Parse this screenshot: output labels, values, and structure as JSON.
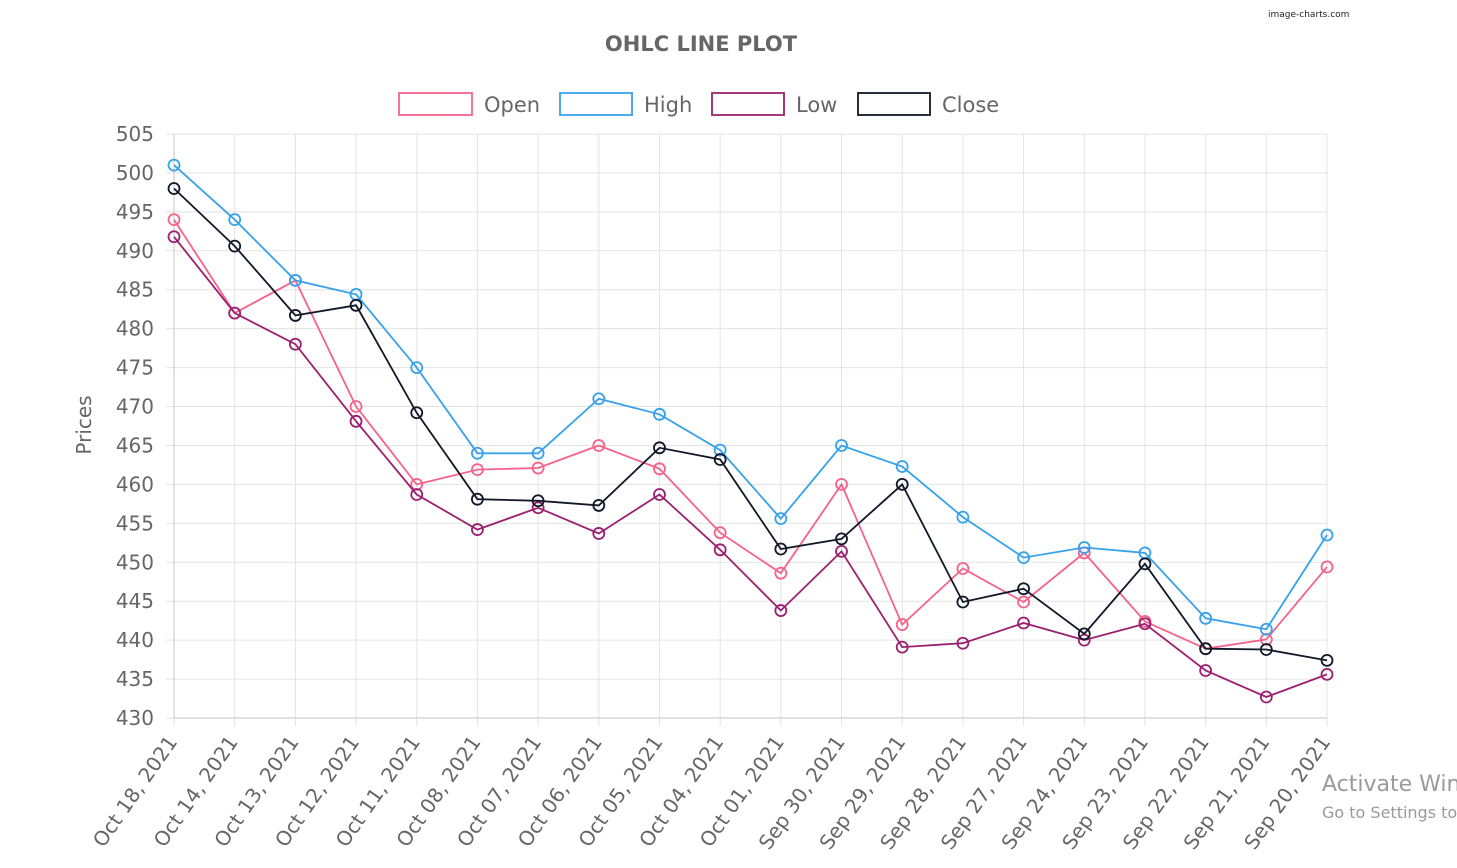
{
  "watermark": "image-charts.com",
  "overlay": {
    "line1": "Activate Win",
    "line2": "Go to Settings to"
  },
  "chart_data": {
    "type": "line",
    "title": "OHLC LINE PLOT",
    "xlabel": "",
    "ylabel": "Prices",
    "ylim": [
      430,
      505
    ],
    "yticks": [
      430,
      435,
      440,
      445,
      450,
      455,
      460,
      465,
      470,
      475,
      480,
      485,
      490,
      495,
      500,
      505
    ],
    "grid": true,
    "legend_position": "top",
    "categories": [
      "Oct 18, 2021",
      "Oct 14, 2021",
      "Oct 13, 2021",
      "Oct 12, 2021",
      "Oct 11, 2021",
      "Oct 08, 2021",
      "Oct 07, 2021",
      "Oct 06, 2021",
      "Oct 05, 2021",
      "Oct 04, 2021",
      "Oct 01, 2021",
      "Sep 30, 2021",
      "Sep 29, 2021",
      "Sep 28, 2021",
      "Sep 27, 2021",
      "Sep 24, 2021",
      "Sep 23, 2021",
      "Sep 22, 2021",
      "Sep 21, 2021",
      "Sep 20, 2021"
    ],
    "series": [
      {
        "name": "Open",
        "color": "#f5638a",
        "values": [
          494.0,
          482.0,
          486.2,
          470.0,
          460.0,
          461.9,
          462.1,
          465.0,
          462.0,
          453.8,
          448.6,
          460.0,
          442.0,
          449.2,
          444.9,
          451.2,
          442.4,
          438.9,
          440.1,
          449.4
        ]
      },
      {
        "name": "High",
        "color": "#36a2eb",
        "values": [
          501.0,
          494.0,
          486.2,
          484.4,
          475.0,
          464.0,
          464.0,
          471.0,
          469.0,
          464.4,
          455.6,
          465.0,
          462.3,
          455.8,
          450.6,
          451.9,
          451.2,
          442.8,
          441.4,
          453.5
        ]
      },
      {
        "name": "Low",
        "color": "#9c2070",
        "values": [
          491.8,
          482.0,
          478.0,
          468.1,
          458.7,
          454.2,
          457.0,
          453.7,
          458.7,
          451.6,
          443.8,
          451.4,
          439.1,
          439.6,
          442.2,
          440.0,
          442.1,
          436.1,
          432.7,
          435.6
        ]
      },
      {
        "name": "Close",
        "color": "#111827",
        "values": [
          498.0,
          490.6,
          481.7,
          483.0,
          469.2,
          458.1,
          457.9,
          457.3,
          464.7,
          463.2,
          451.7,
          453.0,
          460.0,
          444.9,
          446.6,
          440.8,
          449.8,
          438.9,
          438.8,
          437.4
        ]
      }
    ]
  }
}
